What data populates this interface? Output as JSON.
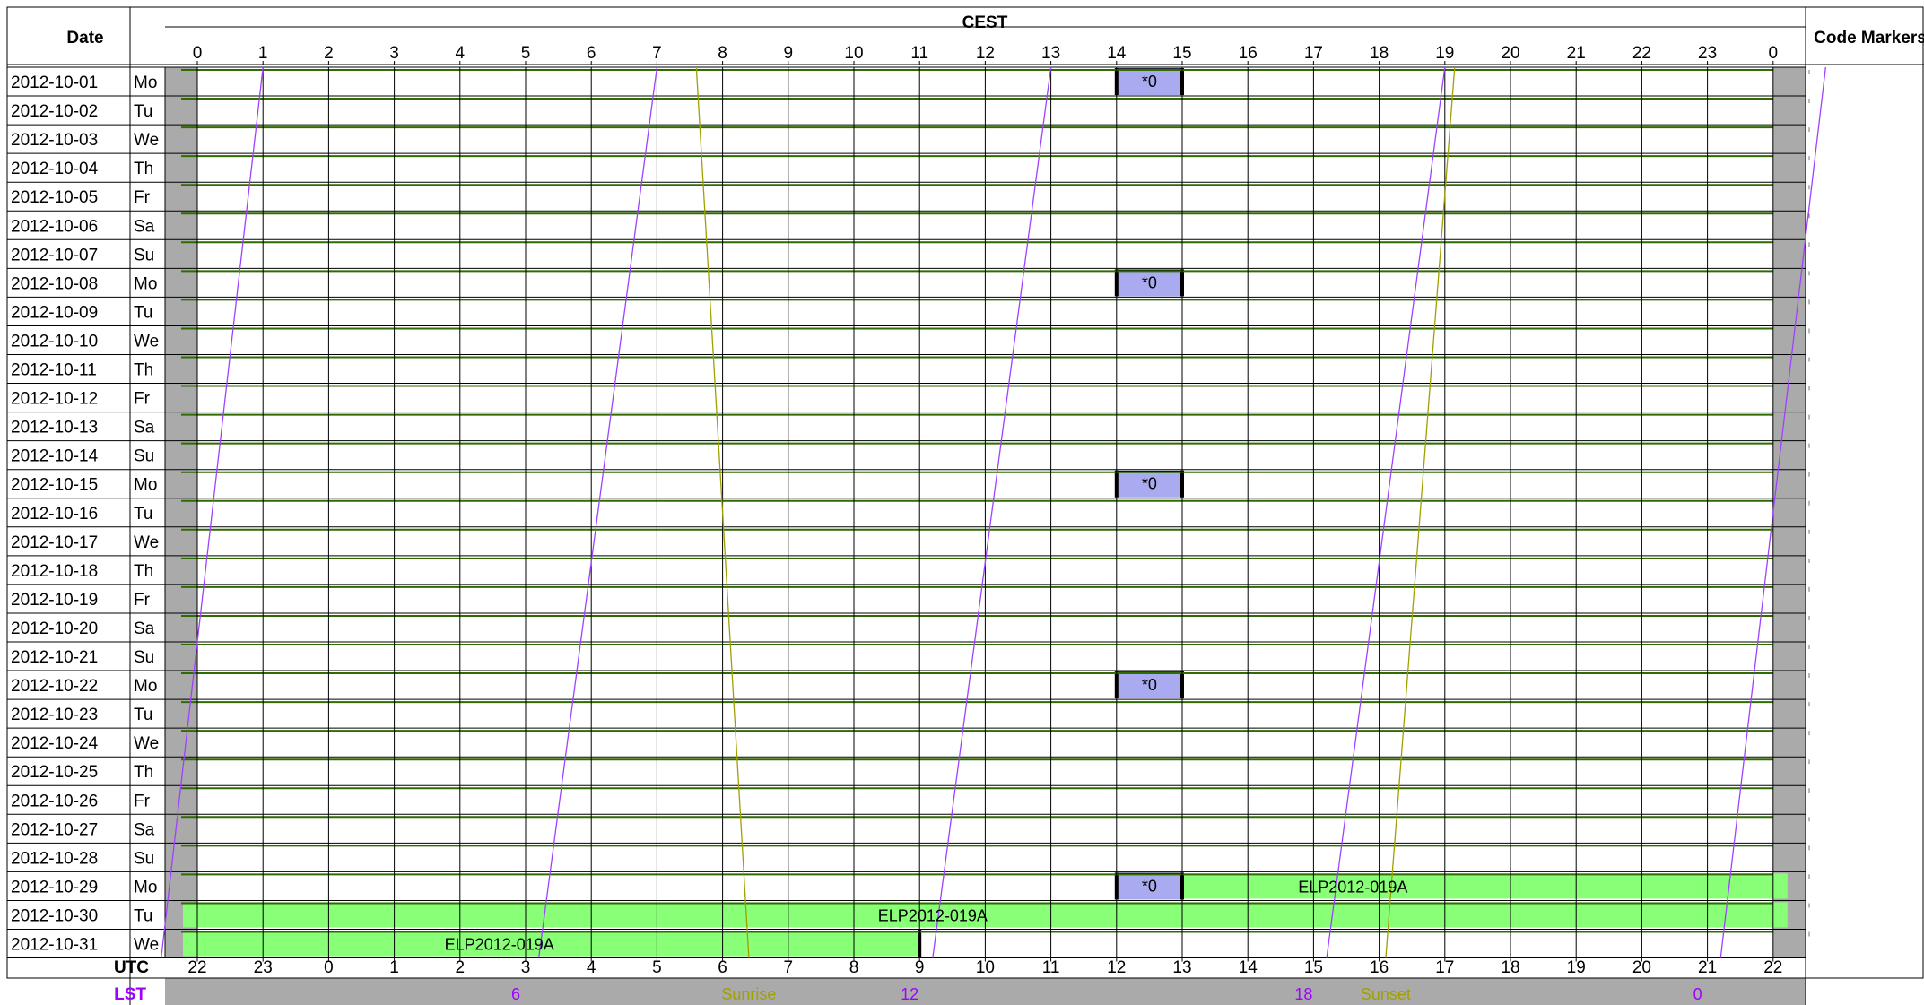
{
  "headers": {
    "date": "Date",
    "top_axis": "CEST",
    "code_markers": "Code Markers",
    "bottom_axis": "UTC",
    "lst_axis": "LST"
  },
  "top_hours": [
    "0",
    "1",
    "2",
    "3",
    "4",
    "5",
    "6",
    "7",
    "8",
    "9",
    "10",
    "11",
    "12",
    "13",
    "14",
    "15",
    "16",
    "17",
    "18",
    "19",
    "20",
    "21",
    "22",
    "23",
    "0"
  ],
  "bottom_hours": [
    "22",
    "23",
    "0",
    "1",
    "2",
    "3",
    "4",
    "5",
    "6",
    "7",
    "8",
    "9",
    "10",
    "11",
    "12",
    "13",
    "14",
    "15",
    "16",
    "17",
    "18",
    "19",
    "20",
    "21",
    "22"
  ],
  "rows": [
    {
      "date": "2012-10-01",
      "day": "Mo"
    },
    {
      "date": "2012-10-02",
      "day": "Tu"
    },
    {
      "date": "2012-10-03",
      "day": "We"
    },
    {
      "date": "2012-10-04",
      "day": "Th"
    },
    {
      "date": "2012-10-05",
      "day": "Fr"
    },
    {
      "date": "2012-10-06",
      "day": "Sa"
    },
    {
      "date": "2012-10-07",
      "day": "Su"
    },
    {
      "date": "2012-10-08",
      "day": "Mo"
    },
    {
      "date": "2012-10-09",
      "day": "Tu"
    },
    {
      "date": "2012-10-10",
      "day": "We"
    },
    {
      "date": "2012-10-11",
      "day": "Th"
    },
    {
      "date": "2012-10-12",
      "day": "Fr"
    },
    {
      "date": "2012-10-13",
      "day": "Sa"
    },
    {
      "date": "2012-10-14",
      "day": "Su"
    },
    {
      "date": "2012-10-15",
      "day": "Mo"
    },
    {
      "date": "2012-10-16",
      "day": "Tu"
    },
    {
      "date": "2012-10-17",
      "day": "We"
    },
    {
      "date": "2012-10-18",
      "day": "Th"
    },
    {
      "date": "2012-10-19",
      "day": "Fr"
    },
    {
      "date": "2012-10-20",
      "day": "Sa"
    },
    {
      "date": "2012-10-21",
      "day": "Su"
    },
    {
      "date": "2012-10-22",
      "day": "Mo"
    },
    {
      "date": "2012-10-23",
      "day": "Tu"
    },
    {
      "date": "2012-10-24",
      "day": "We"
    },
    {
      "date": "2012-10-25",
      "day": "Th"
    },
    {
      "date": "2012-10-26",
      "day": "Fr"
    },
    {
      "date": "2012-10-27",
      "day": "Sa"
    },
    {
      "date": "2012-10-28",
      "day": "Su"
    },
    {
      "date": "2012-10-29",
      "day": "Mo"
    },
    {
      "date": "2012-10-30",
      "day": "Tu"
    },
    {
      "date": "2012-10-31",
      "day": "We"
    }
  ],
  "maintenance_blocks": [
    {
      "row": 0,
      "start": 14,
      "end": 15,
      "label": "*0"
    },
    {
      "row": 7,
      "start": 14,
      "end": 15,
      "label": "*0"
    },
    {
      "row": 14,
      "start": 14,
      "end": 15,
      "label": "*0"
    },
    {
      "row": 21,
      "start": 14,
      "end": 15,
      "label": "*0"
    },
    {
      "row": 28,
      "start": 14,
      "end": 15,
      "label": "*0"
    }
  ],
  "observations": [
    {
      "row": 28,
      "start": 15,
      "end": 24,
      "label": "ELP2012-019A",
      "label_at": 17.6
    },
    {
      "row": 29,
      "start": 0,
      "end": 24,
      "label": "ELP2012-019A",
      "label_at": 11.2
    },
    {
      "row": 30,
      "start": 0,
      "end": 11,
      "label": "ELP2012-019A",
      "label_at": 4.6
    }
  ],
  "lst_labels": [
    {
      "text": "6",
      "at": 4.85,
      "kind": "lst"
    },
    {
      "text": "Sunrise",
      "at": 8.4,
      "kind": "sun"
    },
    {
      "text": "12",
      "at": 10.85,
      "kind": "lst"
    },
    {
      "text": "18",
      "at": 16.85,
      "kind": "lst"
    },
    {
      "text": "Sunset",
      "at": 18.1,
      "kind": "sun"
    },
    {
      "text": "0",
      "at": 22.85,
      "kind": "lst"
    }
  ],
  "lst_lines": [
    {
      "top": 1.0,
      "bottom": -0.55
    },
    {
      "top": 7.0,
      "bottom": 5.2
    },
    {
      "top": 13.0,
      "bottom": 11.2
    },
    {
      "top": 19.0,
      "bottom": 17.2
    },
    {
      "top": 24.8,
      "bottom": 23.2
    }
  ],
  "sun_lines": [
    {
      "name": "Sunrise",
      "top": 7.6,
      "bottom": 8.4
    },
    {
      "name": "Sunset",
      "top": 19.15,
      "bottom": 18.1
    }
  ],
  "colors": {
    "grid": "#000000",
    "row_line": "#2e6b00",
    "margin_gray": "#aaaaaa",
    "maintenance": "#aaaaf0",
    "observation": "#88ff77",
    "lst_line": "#a040ff",
    "sun_line": "#a0a000",
    "lst_text": "#a000ff",
    "sun_text": "#a0a000"
  }
}
